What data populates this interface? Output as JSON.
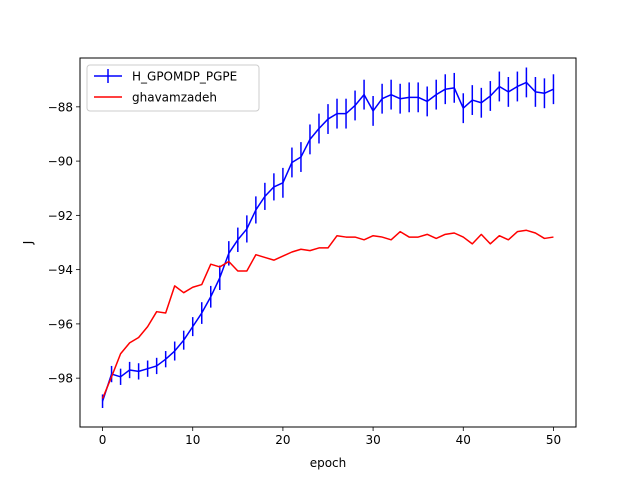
{
  "chart_data": {
    "type": "line",
    "title": "",
    "xlabel": "epoch",
    "ylabel": "J",
    "xlim": [
      -2.5,
      52.5
    ],
    "ylim": [
      -99.8,
      -86.2
    ],
    "xticks": [
      0,
      10,
      20,
      30,
      40,
      50
    ],
    "yticks": [
      -98,
      -96,
      -94,
      -92,
      -90,
      -88
    ],
    "grid": false,
    "legend_position": "top-left",
    "series": [
      {
        "name": "H_GPOMDP_PGPE",
        "color": "#0000ff",
        "x": [
          0,
          1,
          2,
          3,
          4,
          5,
          6,
          7,
          8,
          9,
          10,
          11,
          12,
          13,
          14,
          15,
          16,
          17,
          18,
          19,
          20,
          21,
          22,
          23,
          24,
          25,
          26,
          27,
          28,
          29,
          30,
          31,
          32,
          33,
          34,
          35,
          36,
          37,
          38,
          39,
          40,
          41,
          42,
          43,
          44,
          45,
          46,
          47,
          48,
          49,
          50
        ],
        "values": [
          -98.85,
          -97.85,
          -97.95,
          -97.7,
          -97.75,
          -97.65,
          -97.55,
          -97.3,
          -97.0,
          -96.6,
          -96.1,
          -95.6,
          -95.0,
          -94.3,
          -93.4,
          -92.9,
          -92.5,
          -91.8,
          -91.3,
          -90.95,
          -90.8,
          -90.05,
          -89.85,
          -89.2,
          -88.8,
          -88.45,
          -88.25,
          -88.25,
          -87.95,
          -87.55,
          -88.15,
          -87.7,
          -87.55,
          -87.7,
          -87.65,
          -87.65,
          -87.8,
          -87.55,
          -87.35,
          -87.3,
          -88.05,
          -87.75,
          -87.85,
          -87.6,
          -87.25,
          -87.45,
          -87.25,
          -87.1,
          -87.45,
          -87.5,
          -87.35
        ],
        "errors": [
          0.25,
          0.3,
          0.3,
          0.3,
          0.3,
          0.3,
          0.3,
          0.3,
          0.35,
          0.35,
          0.35,
          0.4,
          0.4,
          0.45,
          0.45,
          0.45,
          0.5,
          0.5,
          0.5,
          0.5,
          0.55,
          0.55,
          0.55,
          0.55,
          0.55,
          0.55,
          0.55,
          0.55,
          0.55,
          0.55,
          0.55,
          0.55,
          0.55,
          0.55,
          0.55,
          0.55,
          0.55,
          0.55,
          0.55,
          0.55,
          0.55,
          0.55,
          0.55,
          0.55,
          0.55,
          0.55,
          0.55,
          0.55,
          0.55,
          0.55,
          0.55
        ]
      },
      {
        "name": "ghavamzadeh",
        "color": "#ff0000",
        "x": [
          0,
          1,
          2,
          3,
          4,
          5,
          6,
          7,
          8,
          9,
          10,
          11,
          12,
          13,
          14,
          15,
          16,
          17,
          18,
          19,
          20,
          21,
          22,
          23,
          24,
          25,
          26,
          27,
          28,
          29,
          30,
          31,
          32,
          33,
          34,
          35,
          36,
          37,
          38,
          39,
          40,
          41,
          42,
          43,
          44,
          45,
          46,
          47,
          48,
          49,
          50
        ],
        "values": [
          -98.75,
          -97.95,
          -97.1,
          -96.7,
          -96.5,
          -96.1,
          -95.55,
          -95.6,
          -94.6,
          -94.85,
          -94.65,
          -94.55,
          -93.8,
          -93.9,
          -93.7,
          -94.05,
          -94.05,
          -93.45,
          -93.55,
          -93.65,
          -93.5,
          -93.35,
          -93.25,
          -93.3,
          -93.2,
          -93.2,
          -92.75,
          -92.8,
          -92.8,
          -92.9,
          -92.75,
          -92.8,
          -92.9,
          -92.6,
          -92.8,
          -92.8,
          -92.7,
          -92.85,
          -92.7,
          -92.65,
          -92.8,
          -93.05,
          -92.7,
          -93.05,
          -92.75,
          -92.9,
          -92.6,
          -92.55,
          -92.65,
          -92.85,
          -92.8
        ]
      }
    ]
  }
}
